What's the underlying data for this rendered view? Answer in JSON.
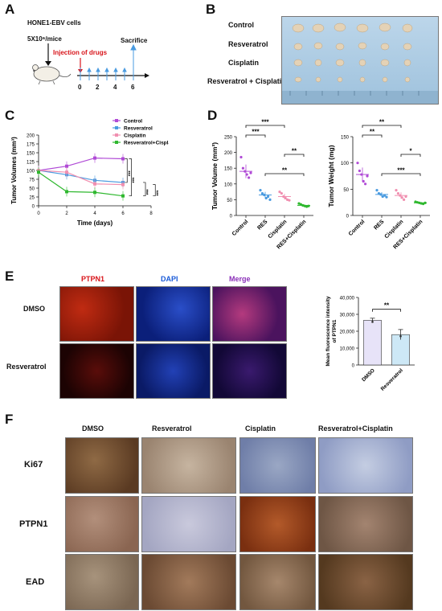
{
  "panels": {
    "a": {
      "letter": "A",
      "cells_label": "HONE1-EBV cells",
      "dose_label": "5X10⁶/mice",
      "injection_label": "Injection of drugs",
      "sacrifice_label": "Sacrifice",
      "ticks": [
        "0",
        "2",
        "4",
        "6"
      ]
    },
    "b": {
      "letter": "B",
      "rows": [
        "Control",
        "Resveratrol",
        "Cisplatin",
        "Resveratrol + Cisplatin"
      ]
    },
    "c": {
      "letter": "C"
    },
    "d": {
      "letter": "D"
    },
    "e": {
      "letter": "E",
      "columns": [
        "PTPN1",
        "DAPI",
        "Merge"
      ],
      "rows": [
        "DMSO",
        "Resveratrol"
      ],
      "column_colors": [
        "#d8141a",
        "#1a5bd8",
        "#8a2fb8"
      ]
    },
    "f": {
      "letter": "F",
      "columns": [
        "DMSO",
        "Resveratrol",
        "Cisplatin",
        "Resveratrol+Cisplatin"
      ],
      "rows": [
        "Ki67",
        "PTPN1",
        "EAD"
      ]
    }
  },
  "chart_data": [
    {
      "id": "tumor-volume-timecourse",
      "type": "line",
      "xlabel": "Time (days)",
      "ylabel": "Tumor Volumes (mm³)",
      "xlim": [
        0,
        8
      ],
      "ylim": [
        0,
        200
      ],
      "xticks": [
        "0",
        "2",
        "4",
        "6",
        "8"
      ],
      "yticks": [
        "0",
        "25",
        "50",
        "75",
        "100",
        "125",
        "150",
        "175",
        "200"
      ],
      "x": [
        0,
        2,
        4,
        6
      ],
      "series": [
        {
          "name": "Control",
          "color": "#b04ad6",
          "values": [
            100,
            112,
            135,
            133
          ]
        },
        {
          "name": "Resveratrol",
          "color": "#4a9be0",
          "values": [
            100,
            88,
            72,
            66
          ]
        },
        {
          "name": "Cisplatin",
          "color": "#f08fb0",
          "values": [
            100,
            95,
            62,
            60
          ]
        },
        {
          "name": "Resveratrol+Cisplatin",
          "color": "#2fb82f",
          "values": [
            95,
            40,
            38,
            28
          ]
        }
      ],
      "annotations": [
        "***",
        "***",
        "***",
        "***"
      ],
      "legend": "top-right"
    },
    {
      "id": "tumor-volume-endpoint",
      "type": "scatter",
      "ylabel": "Tumor Volume (mm³)",
      "ylim": [
        0,
        250
      ],
      "yticks": [
        "0",
        "50",
        "100",
        "150",
        "200",
        "250"
      ],
      "categories": [
        "Control",
        "RES",
        "Cisplatin",
        "RES+Cisplatin"
      ],
      "colors": [
        "#b04ad6",
        "#4a9be0",
        "#f08fb0",
        "#2fb82f"
      ],
      "means": [
        140,
        65,
        60,
        32
      ],
      "points": [
        [
          185,
          150,
          140,
          130,
          120,
          135
        ],
        [
          80,
          70,
          65,
          55,
          60,
          50
        ],
        [
          75,
          70,
          60,
          55,
          50,
          48
        ],
        [
          38,
          35,
          32,
          30,
          28,
          30
        ]
      ],
      "brackets": [
        {
          "from": 0,
          "to": 2,
          "label": "***"
        },
        {
          "from": 0,
          "to": 1,
          "label": "***"
        },
        {
          "from": 2,
          "to": 3,
          "label": "**"
        },
        {
          "from": 1,
          "to": 3,
          "label": "**"
        }
      ]
    },
    {
      "id": "tumor-weight-endpoint",
      "type": "scatter",
      "ylabel": "Tumor Weight (mg)",
      "ylim": [
        0,
        150
      ],
      "yticks": [
        "0",
        "50",
        "100",
        "150"
      ],
      "categories": [
        "Control",
        "RES",
        "Cisplatin",
        "RES+Cisplatin"
      ],
      "colors": [
        "#b04ad6",
        "#4a9be0",
        "#f08fb0",
        "#2fb82f"
      ],
      "means": [
        78,
        40,
        38,
        24
      ],
      "points": [
        [
          100,
          85,
          78,
          65,
          60,
          75
        ],
        [
          48,
          42,
          40,
          36,
          38,
          35
        ],
        [
          48,
          42,
          38,
          34,
          30,
          36
        ],
        [
          26,
          25,
          24,
          23,
          22,
          24
        ]
      ],
      "brackets": [
        {
          "from": 0,
          "to": 2,
          "label": "**"
        },
        {
          "from": 0,
          "to": 1,
          "label": "**"
        },
        {
          "from": 2,
          "to": 3,
          "label": "*"
        },
        {
          "from": 1,
          "to": 3,
          "label": "***"
        }
      ]
    },
    {
      "id": "ptpn1-fluorescence",
      "type": "bar",
      "ylabel": "Mean fluorescence intensity of PTPN1",
      "ylim": [
        0,
        40000
      ],
      "yticks": [
        "0",
        "10,000",
        "20,000",
        "30,000",
        "40,000"
      ],
      "categories": [
        "DMSO",
        "Resveratrol"
      ],
      "values": [
        26500,
        18000
      ],
      "errors": [
        1200,
        3000
      ],
      "colors": [
        "#e7e3f8",
        "#cde8f6"
      ],
      "annotation": "**"
    }
  ]
}
